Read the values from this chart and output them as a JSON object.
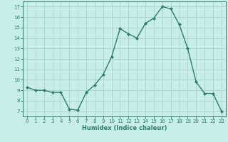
{
  "x": [
    0,
    1,
    2,
    3,
    4,
    5,
    6,
    7,
    8,
    9,
    10,
    11,
    12,
    13,
    14,
    15,
    16,
    17,
    18,
    19,
    20,
    21,
    22,
    23
  ],
  "y": [
    9.3,
    9.0,
    9.0,
    8.8,
    8.8,
    7.2,
    7.1,
    8.8,
    9.5,
    10.5,
    12.2,
    14.9,
    14.4,
    14.0,
    15.4,
    15.9,
    17.0,
    16.8,
    15.3,
    13.0,
    9.8,
    8.7,
    8.7,
    7.0
  ],
  "line_color": "#2e7d6e",
  "marker": "D",
  "marker_size": 2,
  "bg_color": "#c8eee8",
  "grid_color": "#aed6cc",
  "xlabel": "Humidex (Indice chaleur)",
  "ylabel_ticks": [
    7,
    8,
    9,
    10,
    11,
    12,
    13,
    14,
    15,
    16,
    17
  ],
  "ylim": [
    6.5,
    17.5
  ],
  "xlim": [
    -0.5,
    23.5
  ],
  "xlabel_color": "#2e7d6e",
  "tick_color": "#2e7d6e",
  "axis_color": "#2e7d6e",
  "tick_fontsize": 5.0,
  "xlabel_fontsize": 6.0,
  "linewidth": 1.0
}
